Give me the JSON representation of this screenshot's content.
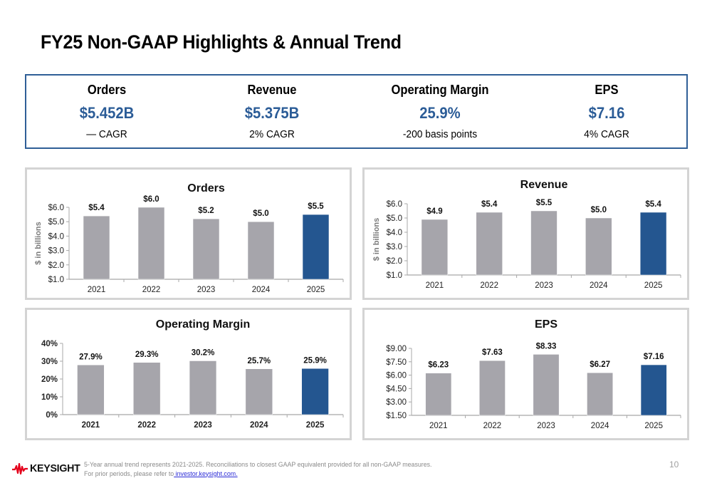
{
  "page": {
    "title": "FY25 Non-GAAP Highlights & Annual Trend",
    "page_number": "10"
  },
  "colors": {
    "accent_blue": "#245690",
    "bar_gray": "#a6a5ab",
    "kpi_value_blue": "#2b5c97",
    "kpi_border": "#2f5f97",
    "panel_border": "#d4d4d4",
    "logo_red": "#e4001b"
  },
  "kpis": [
    {
      "label": "Orders",
      "value": "$5.452B",
      "sub": "— CAGR"
    },
    {
      "label": "Revenue",
      "value": "$5.375B",
      "sub": "2% CAGR"
    },
    {
      "label": "Operating Margin",
      "value": "25.9%",
      "sub": "-200 basis points"
    },
    {
      "label": "EPS",
      "value": "$7.16",
      "sub": "4% CAGR"
    }
  ],
  "footer": {
    "logo_text": "KEYSIGHT",
    "logo_icon": "waveform-icon",
    "note_line1": "5-Year annual trend represents 2021-2025. Reconciliations to closest GAAP equivalent provided for all non-GAAP measures.",
    "note_line2_prefix": "For prior periods, please refer to",
    "link_text": " investor.keysight.com."
  },
  "chart_data": [
    {
      "id": "orders",
      "type": "bar",
      "title": "Orders",
      "xlabel": "",
      "ylabel": "$ in billions",
      "categories": [
        "2021",
        "2022",
        "2023",
        "2024",
        "2025"
      ],
      "values": [
        5.4,
        6.0,
        5.2,
        5.0,
        5.5
      ],
      "data_labels": [
        "$5.4",
        "$6.0",
        "$5.2",
        "$5.0",
        "$5.5"
      ],
      "ylim": [
        1.0,
        6.0
      ],
      "yticks": [
        1.0,
        2.0,
        3.0,
        4.0,
        5.0,
        6.0
      ],
      "ytick_labels": [
        "$1.0",
        "$2.0",
        "$3.0",
        "$4.0",
        "$5.0",
        "$6.0"
      ],
      "highlight_index": 4,
      "grid": false,
      "legend": "none",
      "bold_axis_labels": false
    },
    {
      "id": "revenue",
      "type": "bar",
      "title": "Revenue",
      "xlabel": "",
      "ylabel": "$ in billions",
      "categories": [
        "2021",
        "2022",
        "2023",
        "2024",
        "2025"
      ],
      "values": [
        4.9,
        5.4,
        5.5,
        5.0,
        5.4
      ],
      "data_labels": [
        "$4.9",
        "$5.4",
        "$5.5",
        "$5.0",
        "$5.4"
      ],
      "ylim": [
        1.0,
        6.0
      ],
      "yticks": [
        1.0,
        2.0,
        3.0,
        4.0,
        5.0,
        6.0
      ],
      "ytick_labels": [
        "$1.0",
        "$2.0",
        "$3.0",
        "$4.0",
        "$5.0",
        "$6.0"
      ],
      "highlight_index": 4,
      "grid": false,
      "legend": "none",
      "bold_axis_labels": false
    },
    {
      "id": "operating-margin",
      "type": "bar",
      "title": "Operating  Margin",
      "xlabel": "",
      "ylabel": "",
      "categories": [
        "2021",
        "2022",
        "2023",
        "2024",
        "2025"
      ],
      "values": [
        27.9,
        29.3,
        30.2,
        25.7,
        25.9
      ],
      "data_labels": [
        "27.9%",
        "29.3%",
        "30.2%",
        "25.7%",
        "25.9%"
      ],
      "ylim": [
        0,
        40
      ],
      "yticks": [
        0,
        10,
        20,
        30,
        40
      ],
      "ytick_labels": [
        "0%",
        "10%",
        "20%",
        "30%",
        "40%"
      ],
      "highlight_index": 4,
      "grid": false,
      "legend": "none",
      "bold_axis_labels": true
    },
    {
      "id": "eps",
      "type": "bar",
      "title": "EPS",
      "xlabel": "",
      "ylabel": "",
      "categories": [
        "2021",
        "2022",
        "2023",
        "2024",
        "2025"
      ],
      "values": [
        6.23,
        7.63,
        8.33,
        6.27,
        7.16
      ],
      "data_labels": [
        "$6.23",
        "$7.63",
        "$8.33",
        "$6.27",
        "$7.16"
      ],
      "ylim": [
        1.5,
        9.0
      ],
      "yticks": [
        1.5,
        3.0,
        4.5,
        6.0,
        7.5,
        9.0
      ],
      "ytick_labels": [
        "$1.50",
        "$3.00",
        "$4.50",
        "$6.00",
        "$7.50",
        "$9.00"
      ],
      "highlight_index": 4,
      "grid": false,
      "legend": "none",
      "bold_axis_labels": false
    }
  ]
}
